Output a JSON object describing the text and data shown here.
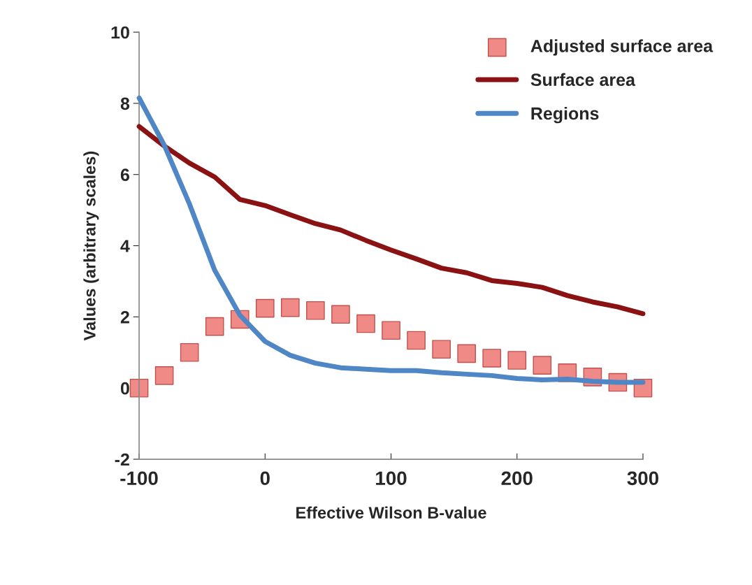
{
  "chart_data": {
    "type": "line",
    "xlabel": "Effective Wilson B-value",
    "ylabel": "Values (arbitrary scales)",
    "x": [
      -100,
      -80,
      -60,
      -40,
      -20,
      0,
      20,
      40,
      60,
      80,
      100,
      120,
      140,
      160,
      180,
      200,
      220,
      240,
      260,
      280,
      300
    ],
    "series": [
      {
        "name": "Adjusted surface area",
        "type": "scatter",
        "marker": "square",
        "color": "#f08a86",
        "values": [
          0,
          0.35,
          1.0,
          1.73,
          1.93,
          2.24,
          2.26,
          2.18,
          2.07,
          1.81,
          1.62,
          1.34,
          1.09,
          0.97,
          0.84,
          0.78,
          0.64,
          0.43,
          0.31,
          0.16,
          0
        ]
      },
      {
        "name": "Surface area",
        "color": "#8b1212",
        "values": [
          7.35,
          6.8,
          6.32,
          5.93,
          5.3,
          5.13,
          4.87,
          4.62,
          4.44,
          4.15,
          3.88,
          3.63,
          3.37,
          3.24,
          3.02,
          2.94,
          2.83,
          2.6,
          2.42,
          2.28,
          2.09
        ]
      },
      {
        "name": "Regions",
        "color": "#4f86c6",
        "values": [
          8.15,
          6.82,
          5.17,
          3.31,
          2.05,
          1.31,
          0.92,
          0.7,
          0.57,
          0.53,
          0.49,
          0.49,
          0.43,
          0.39,
          0.35,
          0.27,
          0.23,
          0.25,
          0.19,
          0.16,
          0.16
        ]
      }
    ],
    "xlim": [
      -100,
      300
    ],
    "xticks": [
      -100,
      0,
      100,
      200,
      300
    ],
    "ylim": [
      -2,
      10
    ],
    "yticks": [
      -2,
      0,
      2,
      4,
      6,
      8,
      10
    ],
    "grid": false,
    "legend": "top right"
  }
}
